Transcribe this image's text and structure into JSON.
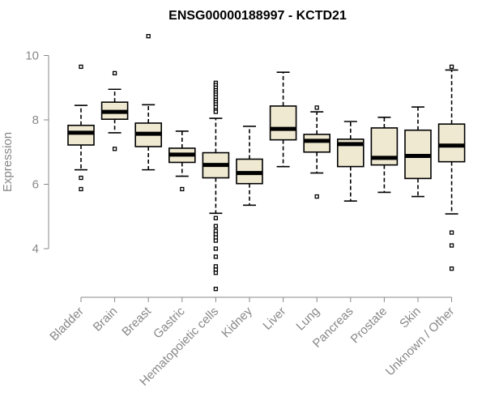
{
  "chart_data": {
    "type": "boxplot",
    "title": "ENSG00000188997 - KCTD21",
    "xlabel": "",
    "ylabel": "Expression",
    "ylim": [
      2.5,
      11
    ],
    "yticks": [
      4,
      6,
      8,
      10
    ],
    "box_fill": "#efe9d2",
    "box_stroke": "#000000",
    "axis_color": "#888888",
    "categories": [
      "Bladder",
      "Brain",
      "Breast",
      "Gastric",
      "Hematopoietic cells",
      "Kidney",
      "Liver",
      "Lung",
      "Pancreas",
      "Prostate",
      "Skin",
      "Unknown / Other"
    ],
    "boxes": [
      {
        "name": "Bladder",
        "whisker_low": 6.45,
        "q1": 7.22,
        "median": 7.6,
        "q3": 7.83,
        "whisker_high": 8.45,
        "outliers": [
          9.65,
          6.2,
          5.85
        ]
      },
      {
        "name": "Brain",
        "whisker_low": 7.6,
        "q1": 8.02,
        "median": 8.25,
        "q3": 8.55,
        "whisker_high": 8.95,
        "outliers": [
          9.45,
          7.1
        ]
      },
      {
        "name": "Breast",
        "whisker_low": 6.45,
        "q1": 7.17,
        "median": 7.57,
        "q3": 7.9,
        "whisker_high": 8.47,
        "outliers": [
          10.6
        ]
      },
      {
        "name": "Gastric",
        "whisker_low": 6.25,
        "q1": 6.68,
        "median": 6.92,
        "q3": 7.12,
        "whisker_high": 7.65,
        "outliers": [
          5.85
        ]
      },
      {
        "name": "Hematopoietic cells",
        "whisker_low": 5.1,
        "q1": 6.2,
        "median": 6.6,
        "q3": 6.98,
        "whisker_high": 8.05,
        "outliers": [
          9.15,
          9.08,
          9.0,
          8.92,
          8.85,
          8.78,
          8.7,
          8.62,
          8.55,
          8.48,
          8.4,
          8.3,
          8.25,
          4.95,
          4.7,
          4.55,
          4.45,
          4.35,
          4.25,
          4.0,
          3.75,
          3.45,
          3.35,
          3.25,
          2.75
        ]
      },
      {
        "name": "Kidney",
        "whisker_low": 5.35,
        "q1": 6.02,
        "median": 6.35,
        "q3": 6.78,
        "whisker_high": 7.8,
        "outliers": []
      },
      {
        "name": "Liver",
        "whisker_low": 6.55,
        "q1": 7.38,
        "median": 7.72,
        "q3": 8.43,
        "whisker_high": 9.48,
        "outliers": []
      },
      {
        "name": "Lung",
        "whisker_low": 6.35,
        "q1": 7.0,
        "median": 7.35,
        "q3": 7.55,
        "whisker_high": 8.25,
        "outliers": [
          8.38,
          5.62
        ]
      },
      {
        "name": "Pancreas",
        "whisker_low": 5.48,
        "q1": 6.55,
        "median": 7.25,
        "q3": 7.4,
        "whisker_high": 7.95,
        "outliers": []
      },
      {
        "name": "Prostate",
        "whisker_low": 5.75,
        "q1": 6.6,
        "median": 6.82,
        "q3": 7.75,
        "whisker_high": 8.08,
        "outliers": []
      },
      {
        "name": "Skin",
        "whisker_low": 5.62,
        "q1": 6.18,
        "median": 6.88,
        "q3": 7.68,
        "whisker_high": 8.4,
        "outliers": []
      },
      {
        "name": "Unknown / Other",
        "whisker_low": 5.08,
        "q1": 6.7,
        "median": 7.2,
        "q3": 7.87,
        "whisker_high": 9.55,
        "outliers": [
          9.65,
          4.5,
          4.1,
          3.38
        ]
      }
    ]
  }
}
